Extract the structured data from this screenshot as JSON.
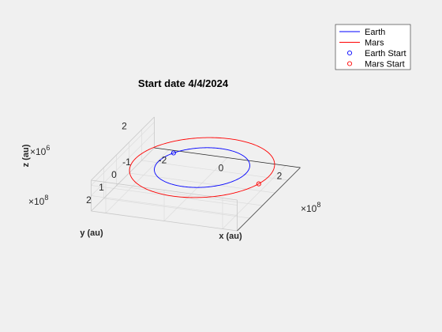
{
  "chart_data": {
    "type": "line3d",
    "title": "Start date 4/4/2024",
    "xlabel": "x (au)",
    "ylabel": "y (au)",
    "zlabel": "z (au)",
    "x_exponent": "8",
    "y_exponent": "8",
    "z_exponent": "6",
    "xlim": [
      -2.5,
      2.5
    ],
    "ylim": [
      -2,
      3
    ],
    "zlim": [
      -3,
      3
    ],
    "x_ticks": [
      -2,
      0,
      2
    ],
    "y_ticks": [
      -1,
      0,
      1,
      2
    ],
    "z_ticks": [
      2
    ],
    "x_tick_labels": [
      "-2",
      "0",
      "2"
    ],
    "y_tick_labels": [
      "-1",
      "0",
      "1",
      "2"
    ],
    "z_tick_labels": [
      "2"
    ],
    "multiplier_base": "×10",
    "grid": true,
    "legend_placement": "top-right",
    "series": [
      {
        "name": "Earth",
        "kind": "orbit",
        "radius": 1.5,
        "z_amplitude": 0,
        "color": "#0000ff"
      },
      {
        "name": "Mars",
        "kind": "orbit",
        "radius": 2.28,
        "z_amplitude": 0.05,
        "color": "#ff0000"
      },
      {
        "name": "Earth Start",
        "kind": "start-marker",
        "x": -1.3,
        "y": -0.75,
        "z": 0,
        "color": "#0000ff"
      },
      {
        "name": "Mars Start",
        "kind": "start-marker",
        "x": 2.2,
        "y": 0.6,
        "z": 0,
        "color": "#ff0000"
      }
    ]
  }
}
